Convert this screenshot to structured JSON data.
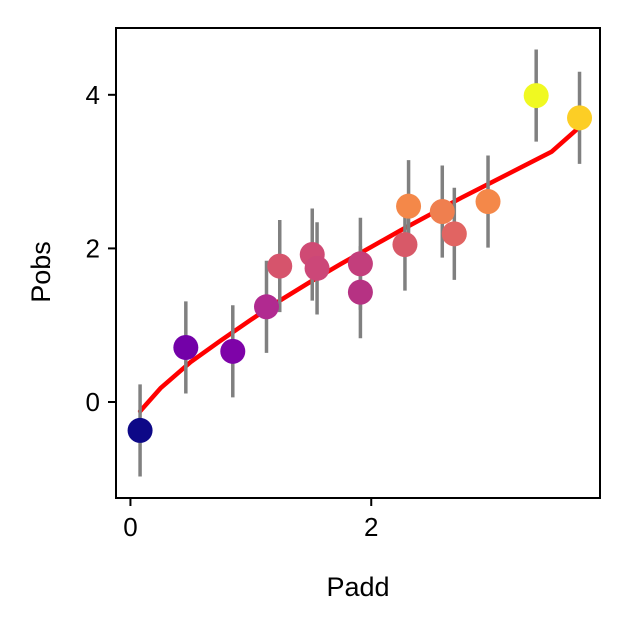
{
  "chart_data": {
    "type": "scatter",
    "title": "",
    "xlabel": "Padd",
    "ylabel": "Pobs",
    "xlim": [
      -0.12,
      3.9
    ],
    "ylim": [
      -1.25,
      4.87
    ],
    "xticks": [
      0,
      2
    ],
    "yticks": [
      0,
      2,
      4
    ],
    "grid": false,
    "legend": "none",
    "colormap": "plasma",
    "colors": {
      "errorbar": "#808080",
      "fit_line": "#ff0000",
      "axes": "#000000"
    },
    "points": [
      {
        "x": 0.08,
        "y": -0.37,
        "err": 0.6,
        "color": "#0d0887"
      },
      {
        "x": 0.46,
        "y": 0.71,
        "err": 0.6,
        "color": "#7301a8"
      },
      {
        "x": 0.85,
        "y": 0.66,
        "err": 0.6,
        "color": "#7e03a8"
      },
      {
        "x": 1.13,
        "y": 1.24,
        "err": 0.6,
        "color": "#b12a90"
      },
      {
        "x": 1.24,
        "y": 1.77,
        "err": 0.6,
        "color": "#d6546c"
      },
      {
        "x": 1.51,
        "y": 1.92,
        "err": 0.6,
        "color": "#cf4a74"
      },
      {
        "x": 1.55,
        "y": 1.74,
        "err": 0.6,
        "color": "#cc4778"
      },
      {
        "x": 1.91,
        "y": 1.43,
        "err": 0.6,
        "color": "#b63283"
      },
      {
        "x": 1.91,
        "y": 1.8,
        "err": 0.6,
        "color": "#c33e7c"
      },
      {
        "x": 2.28,
        "y": 2.05,
        "err": 0.6,
        "color": "#d85968"
      },
      {
        "x": 2.31,
        "y": 2.55,
        "err": 0.6,
        "color": "#f48849"
      },
      {
        "x": 2.59,
        "y": 2.48,
        "err": 0.6,
        "color": "#ef7f4f"
      },
      {
        "x": 2.69,
        "y": 2.19,
        "err": 0.6,
        "color": "#e16462"
      },
      {
        "x": 2.97,
        "y": 2.61,
        "err": 0.6,
        "color": "#f48849"
      },
      {
        "x": 3.37,
        "y": 3.99,
        "err": 0.6,
        "color": "#f0f921"
      },
      {
        "x": 3.73,
        "y": 3.7,
        "err": 0.6,
        "color": "#fcce25"
      }
    ],
    "fit_line": {
      "x": [
        0.08,
        0.25,
        0.5,
        0.75,
        1.0,
        1.25,
        1.5,
        1.75,
        2.0,
        2.25,
        2.5,
        2.75,
        3.0,
        3.25,
        3.5,
        3.73
      ],
      "y": [
        -0.12,
        0.18,
        0.52,
        0.8,
        1.07,
        1.33,
        1.57,
        1.8,
        2.02,
        2.24,
        2.45,
        2.66,
        2.86,
        3.06,
        3.26,
        3.58
      ]
    }
  }
}
